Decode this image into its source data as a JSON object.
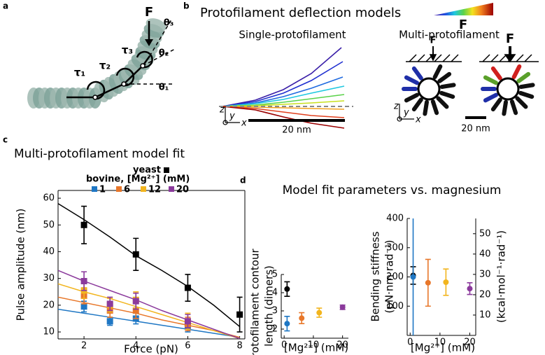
{
  "panel_labels": [
    "a",
    "b",
    "c",
    "d"
  ],
  "diagram_a": {
    "force": "F",
    "torques": [
      "τ₁",
      "τ₂",
      "τ₃"
    ],
    "angles": [
      "θ₁",
      "θ₂",
      "θ₃"
    ]
  },
  "diagram_b": {
    "title": "Protofilament deflection models",
    "colorbar_label": "F",
    "single": {
      "title": "Single-protofilament",
      "scale": "20 nm",
      "axes": [
        "z",
        "y",
        "x"
      ]
    },
    "multi": {
      "title": "Multi-protofilament",
      "scale": "20 nm",
      "axes": [
        "z",
        "y",
        "x"
      ],
      "forces": [
        "F",
        "F"
      ]
    }
  },
  "chart_data": [
    {
      "type": "line",
      "title": "Multi-protofilament model fit",
      "xlabel": "Force (pN)",
      "ylabel": "Pulse amplitude (nm)",
      "xlim": [
        1,
        8.2
      ],
      "ylim": [
        7.4,
        62.9
      ],
      "xticks": [
        2,
        4,
        6,
        8
      ],
      "yticks": [
        10,
        20,
        30,
        40,
        50,
        60
      ],
      "legend_title": "bovine, [Mg²⁺] (mM)",
      "fit_x": [
        1,
        2,
        3,
        4,
        5,
        6,
        7,
        8
      ],
      "series": [
        {
          "name": "yeast",
          "color": "#000000",
          "x": [
            2,
            4,
            6,
            8
          ],
          "values": [
            50,
            39,
            26.5,
            16.5
          ],
          "errors": [
            7,
            6,
            5,
            6.5
          ],
          "fit": [
            58,
            52,
            45.5,
            38.5,
            33,
            27,
            20,
            12
          ]
        },
        {
          "name": "1",
          "color": "#1f77c4",
          "x": [
            2,
            3,
            4,
            6
          ],
          "values": [
            19.5,
            14,
            15,
            12
          ],
          "errors": [
            2,
            1.5,
            2,
            2
          ],
          "fit": [
            18.5,
            17,
            15.5,
            14,
            12.5,
            11,
            9.5,
            8
          ]
        },
        {
          "name": "6",
          "color": "#e8772a",
          "x": [
            2,
            3,
            4,
            6
          ],
          "values": [
            23.5,
            18,
            18,
            13
          ],
          "errors": [
            3,
            2.5,
            3,
            2.5
          ],
          "fit": [
            23,
            21,
            19,
            17,
            14.5,
            12.5,
            10.5,
            8
          ]
        },
        {
          "name": "12",
          "color": "#f2b51e",
          "x": [
            2,
            3,
            4,
            6
          ],
          "values": [
            25.5,
            20,
            22,
            14
          ],
          "errors": [
            3,
            2.5,
            3,
            3
          ],
          "fit": [
            28,
            25,
            22.5,
            19.5,
            16.5,
            13.5,
            10.5,
            7.5
          ]
        },
        {
          "name": "20",
          "color": "#8b3a9c",
          "x": [
            2,
            3,
            4,
            6
          ],
          "values": [
            29,
            20.5,
            21.5,
            14
          ],
          "errors": [
            3.5,
            2.5,
            3,
            2.5
          ],
          "fit": [
            33,
            29,
            25.5,
            22,
            18,
            14.5,
            11,
            7.5
          ]
        }
      ]
    },
    {
      "type": "scatter",
      "title": "Model fit parameters vs. magnesium",
      "xlabel": "[Mg²⁺] (mM)",
      "ylabel": [
        "Protofilament contour",
        "length (dimers)"
      ],
      "xlim": [
        -1,
        22
      ],
      "ylim": [
        1.5,
        5
      ],
      "xticks": [
        0,
        10,
        20
      ],
      "yticks": [
        2,
        3,
        4,
        5
      ],
      "x": [
        1,
        1,
        6,
        12,
        20
      ],
      "values": [
        4.2,
        2.3,
        2.6,
        2.9,
        3.2
      ],
      "errors": [
        0.4,
        0.4,
        0.3,
        0.25,
        0.12
      ],
      "colors": [
        "#000000",
        "#1f77c4",
        "#e8772a",
        "#f2b51e",
        "#8b3a9c"
      ]
    },
    {
      "type": "scatter",
      "xlabel": "[Mg²⁺] (mM)",
      "ylabel": [
        "Bending stiffness",
        "(pN·nm·rad⁻¹)"
      ],
      "y2label": "(kcal·mol⁻¹·rad⁻¹)",
      "xlim": [
        -1,
        22
      ],
      "ylim": [
        0,
        400
      ],
      "y2lim": [
        0,
        57.5
      ],
      "xticks": [
        0,
        10,
        20
      ],
      "yticks": [
        100,
        200,
        300,
        400
      ],
      "y2ticks": [
        10,
        20,
        30,
        40,
        50
      ],
      "x": [
        1,
        1,
        6,
        12,
        20
      ],
      "values": [
        205,
        200,
        180,
        182,
        160
      ],
      "errors": [
        30,
        250,
        80,
        45,
        20
      ],
      "colors": [
        "#000000",
        "#1f77c4",
        "#e8772a",
        "#f2b51e",
        "#8b3a9c"
      ]
    }
  ]
}
